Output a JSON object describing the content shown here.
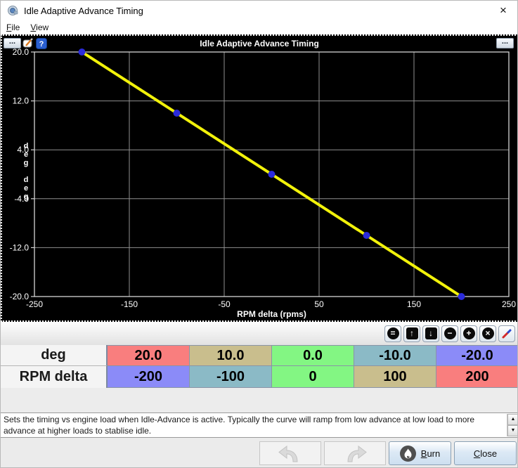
{
  "window": {
    "title": "Idle Adaptive Advance Timing",
    "close_glyph": "×"
  },
  "menu": {
    "items": [
      {
        "label": "File"
      },
      {
        "label": "View"
      }
    ]
  },
  "chart_data": {
    "type": "line",
    "title": "Idle Adaptive Advance Timing",
    "xlabel": "RPM delta (rpms)",
    "ylabel": "deg",
    "ylabel_stacked": [
      "deg",
      "deg"
    ],
    "x": [
      -200,
      -100,
      0,
      100,
      200
    ],
    "y": [
      20,
      10,
      0,
      -10,
      -20
    ],
    "xlim": [
      -250,
      250
    ],
    "ylim": [
      -20,
      20
    ],
    "x_ticks": [
      -250,
      -150,
      -50,
      50,
      150,
      250
    ],
    "x_tick_labels": [
      "-250",
      "-150",
      "-50",
      "50",
      "150",
      "250"
    ],
    "y_ticks": [
      20,
      12,
      4,
      -4,
      -12,
      -20
    ],
    "y_tick_labels": [
      "20.0",
      "12.0",
      "4.0",
      "-4.0",
      "-12.0",
      "-20.0"
    ],
    "grid": true,
    "legend": false,
    "background": "#000000",
    "line_color": "#f2f20a",
    "point_color": "#2b2bdb",
    "grid_color": "#8f8f8f",
    "frame_color": "#d4d4d4",
    "text_color": "#ffffff"
  },
  "chart_controls": {
    "left_dots_label": "...",
    "help_label": "?",
    "right_dots_label": "..."
  },
  "table_toolbar": {
    "buttons": [
      {
        "name": "set-equal",
        "glyph": "="
      },
      {
        "name": "increment-up",
        "glyph": "↑"
      },
      {
        "name": "increment-down",
        "glyph": "↓"
      },
      {
        "name": "decrease",
        "glyph": "−"
      },
      {
        "name": "increase",
        "glyph": "+"
      },
      {
        "name": "clear",
        "glyph": "×"
      },
      {
        "name": "edit-pencil",
        "glyph": ""
      }
    ]
  },
  "table": {
    "rows": [
      {
        "header": "deg",
        "cells": [
          {
            "value": "20.0",
            "color": "#f97e7e"
          },
          {
            "value": "10.0",
            "color": "#c9be8d"
          },
          {
            "value": "0.0",
            "color": "#83f683"
          },
          {
            "value": "-10.0",
            "color": "#8bbac6"
          },
          {
            "value": "-20.0",
            "color": "#8b8bf8"
          }
        ]
      },
      {
        "header": "RPM delta",
        "cells": [
          {
            "value": "-200",
            "color": "#8b8bf8"
          },
          {
            "value": "-100",
            "color": "#8bbac6"
          },
          {
            "value": "0",
            "color": "#83f683"
          },
          {
            "value": "100",
            "color": "#c9be8d"
          },
          {
            "value": "200",
            "color": "#f97e7e"
          }
        ]
      }
    ]
  },
  "description": {
    "text": "Sets the timing vs engine load when Idle-Advance is active. Typically the curve will ramp from low advance at low load to more advance at higher loads to stablise idle."
  },
  "scrollbar": {
    "up_glyph": "▲",
    "down_glyph": "▼"
  },
  "footer": {
    "burn_label": "Burn",
    "close_label": "Close"
  }
}
